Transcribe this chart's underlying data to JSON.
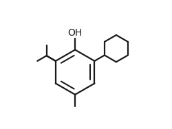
{
  "background_color": "#ffffff",
  "line_color": "#1a1a1a",
  "line_width": 1.6,
  "oh_label": "OH",
  "oh_fontsize": 10,
  "figsize": [
    2.5,
    1.88
  ],
  "dpi": 100,
  "xlim": [
    0,
    1
  ],
  "ylim": [
    0,
    1
  ]
}
